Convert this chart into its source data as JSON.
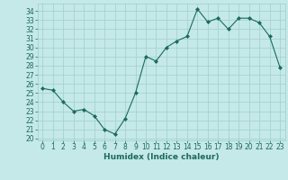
{
  "x": [
    0,
    1,
    2,
    3,
    4,
    5,
    6,
    7,
    8,
    9,
    10,
    11,
    12,
    13,
    14,
    15,
    16,
    17,
    18,
    19,
    20,
    21,
    22,
    23
  ],
  "y": [
    25.5,
    25.3,
    24.0,
    23.0,
    23.2,
    22.5,
    21.0,
    20.5,
    22.2,
    25.0,
    29.0,
    28.5,
    30.0,
    30.7,
    31.2,
    34.2,
    32.8,
    33.2,
    32.0,
    33.2,
    33.2,
    32.7,
    31.2,
    27.8
  ],
  "xlabel": "Humidex (Indice chaleur)",
  "xticks": [
    0,
    1,
    2,
    3,
    4,
    5,
    6,
    7,
    8,
    9,
    10,
    11,
    12,
    13,
    14,
    15,
    16,
    17,
    18,
    19,
    20,
    21,
    22,
    23
  ],
  "yticks": [
    20,
    21,
    22,
    23,
    24,
    25,
    26,
    27,
    28,
    29,
    30,
    31,
    32,
    33,
    34
  ],
  "ylim": [
    19.8,
    34.8
  ],
  "xlim": [
    -0.5,
    23.5
  ],
  "line_color": "#1a6b5a",
  "marker_color": "#1a6b5a",
  "bg_color": "#c5e8e8",
  "grid_color": "#9fcfcf",
  "label_color": "#1a6b5a",
  "tick_color": "#1a6b5a",
  "font_size_ticks": 5.5,
  "font_size_xlabel": 6.5
}
